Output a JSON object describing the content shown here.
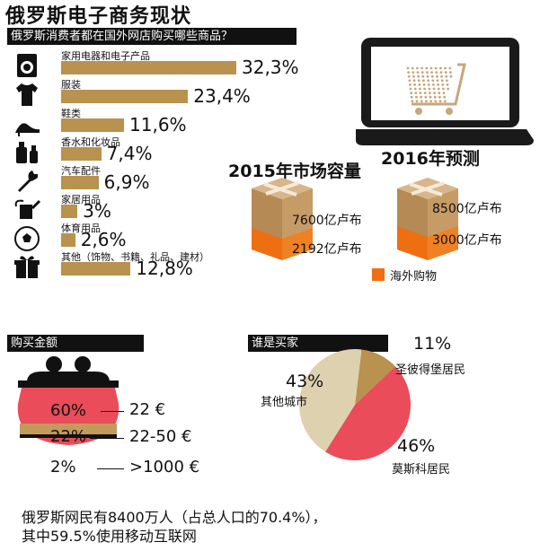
{
  "title": "俄罗斯电子商务现状",
  "section_goods": {
    "header": "俄罗斯消费者都在国外网店购买哪些商品？",
    "items": [
      {
        "label": "家用电器和电子产品",
        "value": "32,3%",
        "icon": "washing-machine-icon"
      },
      {
        "label": "服装",
        "value": "23,4%",
        "icon": "tshirt-icon"
      },
      {
        "label": "鞋类",
        "value": "11,6%",
        "icon": "high-heel-icon"
      },
      {
        "label": "香水和化妆品",
        "value": "7,4%",
        "icon": "perfume-icon"
      },
      {
        "label": "汽车配件",
        "value": "6,9%",
        "icon": "wrench-icon"
      },
      {
        "label": "家居用品",
        "value": "3%",
        "icon": "watering-can-icon"
      },
      {
        "label": "体育用品",
        "value": "2,6%",
        "icon": "soccer-ball-icon"
      },
      {
        "label": "其他（饰物、书籍、礼品、建材）",
        "value": "12,8%",
        "icon": "gift-icon"
      }
    ]
  },
  "market": {
    "y2015_title": "2015年市场容量",
    "y2016_title": "2016年预测",
    "y2015_total": "7600亿卢布",
    "y2015_foreign": "2192亿卢布",
    "y2016_total": "8500亿卢布",
    "y2016_foreign": "3000亿卢布",
    "legend": "海外购物"
  },
  "spending": {
    "header": "购买金额",
    "rows": [
      {
        "pct": "60%",
        "amount": "22 €"
      },
      {
        "pct": "22%",
        "amount": "22-50 €"
      },
      {
        "pct": "2%",
        "amount": ">1000 €"
      }
    ]
  },
  "buyers": {
    "header": "谁是买家",
    "slices": [
      {
        "pct": "11%",
        "label": "圣彼得堡居民"
      },
      {
        "pct": "46%",
        "label": "莫斯科居民"
      },
      {
        "pct": "43%",
        "label": "其他城市"
      }
    ]
  },
  "footer": {
    "line1": "俄罗斯网民有8400万人（占总人口的70.4%），",
    "line2": "其中59.5%使用移动互联网"
  },
  "colors": {
    "bar": "#b8924e",
    "orange": "#ee6f12",
    "pie_stpete": "#b8924e",
    "pie_moscow": "#ea4c5a",
    "pie_other": "#ddd1b0"
  },
  "chart_data": [
    {
      "type": "bar",
      "title": "俄罗斯消费者都在国外网店购买哪些商品？",
      "categories": [
        "家用电器和电子产品",
        "服装",
        "鞋类",
        "香水和化妆品",
        "汽车配件",
        "家居用品",
        "体育用品",
        "其他（饰物、书籍、礼品、建材）"
      ],
      "values": [
        32.3,
        23.4,
        11.6,
        7.4,
        6.9,
        3,
        2.6,
        12.8
      ]
    },
    {
      "type": "pie",
      "title": "谁是买家",
      "categories": [
        "圣彼得堡居民",
        "莫斯科居民",
        "其他城市"
      ],
      "values": [
        11,
        46,
        43
      ]
    }
  ]
}
